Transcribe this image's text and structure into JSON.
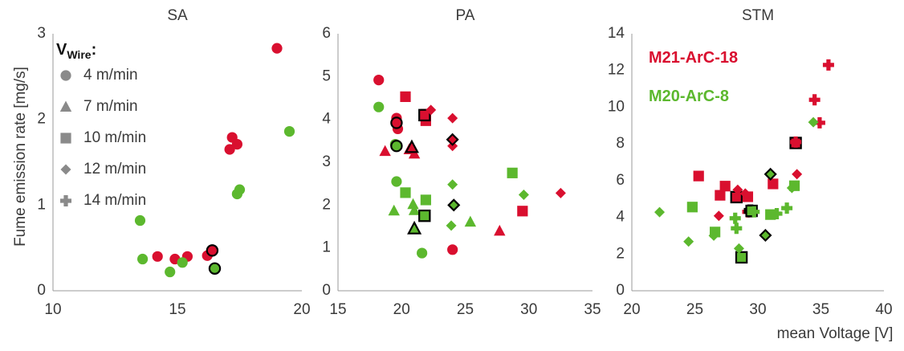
{
  "colors": {
    "red": "#d90f2f",
    "green": "#5cb82e",
    "legend_gray": "#8a8a8a",
    "outline": "#000000"
  },
  "legend": {
    "title_main": "V",
    "title_sub": "Wire",
    "title_suffix": ":",
    "items": [
      {
        "marker": "circle",
        "label": "4 m/min"
      },
      {
        "marker": "triangle",
        "label": "7 m/min"
      },
      {
        "marker": "square",
        "label": "10 m/min"
      },
      {
        "marker": "diamond",
        "label": "12 m/min"
      },
      {
        "marker": "plus",
        "label": "14 m/min"
      }
    ]
  },
  "series_labels": [
    {
      "name": "M21-ArC-18",
      "color": "#d90f2f"
    },
    {
      "name": "M20-ArC-8",
      "color": "#5cb82e"
    }
  ],
  "ylabel": "Fume emission rate [mg/s]",
  "xlabel": "mean Voltage [V]",
  "chart_data": [
    {
      "type": "scatter",
      "title": "SA",
      "xlim": [
        10,
        20
      ],
      "xticks": [
        10,
        15,
        20
      ],
      "ylim": [
        0,
        3
      ],
      "yticks": [
        0,
        1,
        2,
        3
      ],
      "points": [
        {
          "x": 14.2,
          "y": 0.4,
          "c": "red",
          "m": "circle"
        },
        {
          "x": 14.9,
          "y": 0.37,
          "c": "red",
          "m": "circle"
        },
        {
          "x": 15.4,
          "y": 0.4,
          "c": "red",
          "m": "circle"
        },
        {
          "x": 16.2,
          "y": 0.41,
          "c": "red",
          "m": "circle"
        },
        {
          "x": 16.4,
          "y": 0.47,
          "c": "red",
          "m": "circle",
          "o": true
        },
        {
          "x": 17.1,
          "y": 1.65,
          "c": "red",
          "m": "circle"
        },
        {
          "x": 17.2,
          "y": 1.79,
          "c": "red",
          "m": "circle"
        },
        {
          "x": 17.4,
          "y": 1.71,
          "c": "red",
          "m": "circle"
        },
        {
          "x": 19.0,
          "y": 2.83,
          "c": "red",
          "m": "circle"
        },
        {
          "x": 13.5,
          "y": 0.82,
          "c": "green",
          "m": "circle"
        },
        {
          "x": 13.6,
          "y": 0.37,
          "c": "green",
          "m": "circle"
        },
        {
          "x": 14.7,
          "y": 0.22,
          "c": "green",
          "m": "circle"
        },
        {
          "x": 15.2,
          "y": 0.33,
          "c": "green",
          "m": "circle"
        },
        {
          "x": 16.5,
          "y": 0.26,
          "c": "green",
          "m": "circle",
          "o": true
        },
        {
          "x": 17.4,
          "y": 1.13,
          "c": "green",
          "m": "circle"
        },
        {
          "x": 17.5,
          "y": 1.18,
          "c": "green",
          "m": "circle"
        },
        {
          "x": 19.5,
          "y": 1.86,
          "c": "green",
          "m": "circle"
        }
      ]
    },
    {
      "type": "scatter",
      "title": "PA",
      "xlim": [
        15,
        35
      ],
      "xticks": [
        15,
        20,
        25,
        30,
        35
      ],
      "ylim": [
        0,
        6
      ],
      "yticks": [
        0,
        1,
        2,
        3,
        4,
        5,
        6
      ],
      "points": [
        {
          "x": 18.2,
          "y": 4.92,
          "c": "red",
          "m": "circle"
        },
        {
          "x": 19.6,
          "y": 4.03,
          "c": "red",
          "m": "circle"
        },
        {
          "x": 19.7,
          "y": 3.78,
          "c": "red",
          "m": "circle"
        },
        {
          "x": 19.6,
          "y": 3.92,
          "c": "red",
          "m": "circle",
          "o": true
        },
        {
          "x": 24.0,
          "y": 0.96,
          "c": "red",
          "m": "circle"
        },
        {
          "x": 18.7,
          "y": 3.26,
          "c": "red",
          "m": "triangle"
        },
        {
          "x": 20.6,
          "y": 3.3,
          "c": "red",
          "m": "triangle"
        },
        {
          "x": 21.0,
          "y": 3.2,
          "c": "red",
          "m": "triangle"
        },
        {
          "x": 20.8,
          "y": 3.35,
          "c": "red",
          "m": "triangle",
          "o": true
        },
        {
          "x": 27.7,
          "y": 1.4,
          "c": "red",
          "m": "triangle"
        },
        {
          "x": 20.3,
          "y": 4.53,
          "c": "red",
          "m": "square"
        },
        {
          "x": 21.9,
          "y": 4.12,
          "c": "red",
          "m": "square"
        },
        {
          "x": 21.9,
          "y": 3.97,
          "c": "red",
          "m": "square"
        },
        {
          "x": 21.8,
          "y": 4.1,
          "c": "red",
          "m": "square",
          "o": true
        },
        {
          "x": 29.5,
          "y": 1.86,
          "c": "red",
          "m": "square"
        },
        {
          "x": 22.3,
          "y": 4.22,
          "c": "red",
          "m": "diamond"
        },
        {
          "x": 24.0,
          "y": 4.03,
          "c": "red",
          "m": "diamond"
        },
        {
          "x": 24.0,
          "y": 3.38,
          "c": "red",
          "m": "diamond"
        },
        {
          "x": 24.0,
          "y": 3.53,
          "c": "red",
          "m": "diamond",
          "o": true
        },
        {
          "x": 32.5,
          "y": 2.28,
          "c": "red",
          "m": "diamond"
        },
        {
          "x": 18.2,
          "y": 4.29,
          "c": "green",
          "m": "circle"
        },
        {
          "x": 19.5,
          "y": 3.42,
          "c": "green",
          "m": "circle"
        },
        {
          "x": 19.6,
          "y": 3.38,
          "c": "green",
          "m": "circle",
          "o": true
        },
        {
          "x": 19.6,
          "y": 2.55,
          "c": "green",
          "m": "circle"
        },
        {
          "x": 21.6,
          "y": 0.88,
          "c": "green",
          "m": "circle"
        },
        {
          "x": 19.4,
          "y": 1.87,
          "c": "green",
          "m": "triangle"
        },
        {
          "x": 20.9,
          "y": 2.02,
          "c": "green",
          "m": "triangle"
        },
        {
          "x": 21.0,
          "y": 1.88,
          "c": "green",
          "m": "triangle"
        },
        {
          "x": 21.0,
          "y": 1.45,
          "c": "green",
          "m": "triangle",
          "o": true
        },
        {
          "x": 25.4,
          "y": 1.61,
          "c": "green",
          "m": "triangle"
        },
        {
          "x": 20.3,
          "y": 2.29,
          "c": "green",
          "m": "square"
        },
        {
          "x": 21.9,
          "y": 2.12,
          "c": "green",
          "m": "square"
        },
        {
          "x": 21.8,
          "y": 1.75,
          "c": "green",
          "m": "square",
          "o": true
        },
        {
          "x": 28.7,
          "y": 2.75,
          "c": "green",
          "m": "square"
        },
        {
          "x": 24.0,
          "y": 2.48,
          "c": "green",
          "m": "diamond"
        },
        {
          "x": 24.1,
          "y": 2.0,
          "c": "green",
          "m": "diamond",
          "o": true
        },
        {
          "x": 23.9,
          "y": 1.52,
          "c": "green",
          "m": "diamond"
        },
        {
          "x": 29.6,
          "y": 2.24,
          "c": "green",
          "m": "diamond"
        }
      ]
    },
    {
      "type": "scatter",
      "title": "STM",
      "xlim": [
        20,
        40
      ],
      "xticks": [
        20,
        25,
        30,
        35,
        40
      ],
      "ylim": [
        0,
        14
      ],
      "yticks": [
        0,
        2,
        4,
        6,
        8,
        10,
        12,
        14
      ],
      "points": [
        {
          "x": 25.3,
          "y": 6.25,
          "c": "red",
          "m": "square"
        },
        {
          "x": 27.0,
          "y": 5.2,
          "c": "red",
          "m": "square"
        },
        {
          "x": 27.4,
          "y": 5.7,
          "c": "red",
          "m": "square"
        },
        {
          "x": 28.3,
          "y": 5.1,
          "c": "red",
          "m": "square",
          "o": true
        },
        {
          "x": 29.2,
          "y": 5.12,
          "c": "red",
          "m": "square"
        },
        {
          "x": 31.2,
          "y": 5.82,
          "c": "red",
          "m": "square"
        },
        {
          "x": 33.0,
          "y": 8.05,
          "c": "red",
          "m": "square",
          "o": true
        },
        {
          "x": 26.9,
          "y": 4.08,
          "c": "red",
          "m": "diamond"
        },
        {
          "x": 29.0,
          "y": 5.3,
          "c": "red",
          "m": "diamond"
        },
        {
          "x": 31.0,
          "y": 6.38,
          "c": "red",
          "m": "diamond"
        },
        {
          "x": 33.1,
          "y": 6.35,
          "c": "red",
          "m": "diamond"
        },
        {
          "x": 28.4,
          "y": 5.5,
          "c": "red",
          "m": "diamond"
        },
        {
          "x": 29.2,
          "y": 4.3,
          "c": "red",
          "m": "plus"
        },
        {
          "x": 29.4,
          "y": 4.35,
          "c": "red",
          "m": "plus",
          "o": true
        },
        {
          "x": 33.0,
          "y": 8.1,
          "c": "red",
          "m": "plus"
        },
        {
          "x": 34.5,
          "y": 10.4,
          "c": "red",
          "m": "plus"
        },
        {
          "x": 34.9,
          "y": 9.15,
          "c": "red",
          "m": "plus"
        },
        {
          "x": 35.6,
          "y": 12.3,
          "c": "red",
          "m": "plus"
        },
        {
          "x": 24.8,
          "y": 4.56,
          "c": "green",
          "m": "square"
        },
        {
          "x": 26.6,
          "y": 3.2,
          "c": "green",
          "m": "square"
        },
        {
          "x": 28.7,
          "y": 1.82,
          "c": "green",
          "m": "square",
          "o": true
        },
        {
          "x": 29.5,
          "y": 4.35,
          "c": "green",
          "m": "square",
          "o": true
        },
        {
          "x": 31.0,
          "y": 4.15,
          "c": "green",
          "m": "square"
        },
        {
          "x": 32.9,
          "y": 5.72,
          "c": "green",
          "m": "square"
        },
        {
          "x": 22.2,
          "y": 4.28,
          "c": "green",
          "m": "diamond"
        },
        {
          "x": 24.5,
          "y": 2.68,
          "c": "green",
          "m": "diamond"
        },
        {
          "x": 26.5,
          "y": 3.0,
          "c": "green",
          "m": "diamond"
        },
        {
          "x": 28.5,
          "y": 2.3,
          "c": "green",
          "m": "diamond"
        },
        {
          "x": 30.6,
          "y": 3.02,
          "c": "green",
          "m": "diamond",
          "o": true
        },
        {
          "x": 31.0,
          "y": 6.35,
          "c": "green",
          "m": "diamond",
          "o": true
        },
        {
          "x": 32.7,
          "y": 5.6,
          "c": "green",
          "m": "diamond"
        },
        {
          "x": 34.4,
          "y": 9.18,
          "c": "green",
          "m": "diamond"
        },
        {
          "x": 28.2,
          "y": 3.95,
          "c": "green",
          "m": "plus"
        },
        {
          "x": 28.3,
          "y": 3.4,
          "c": "green",
          "m": "plus"
        },
        {
          "x": 29.7,
          "y": 4.3,
          "c": "green",
          "m": "plus"
        },
        {
          "x": 31.5,
          "y": 4.2,
          "c": "green",
          "m": "plus"
        },
        {
          "x": 32.3,
          "y": 4.5,
          "c": "green",
          "m": "plus"
        }
      ]
    }
  ]
}
